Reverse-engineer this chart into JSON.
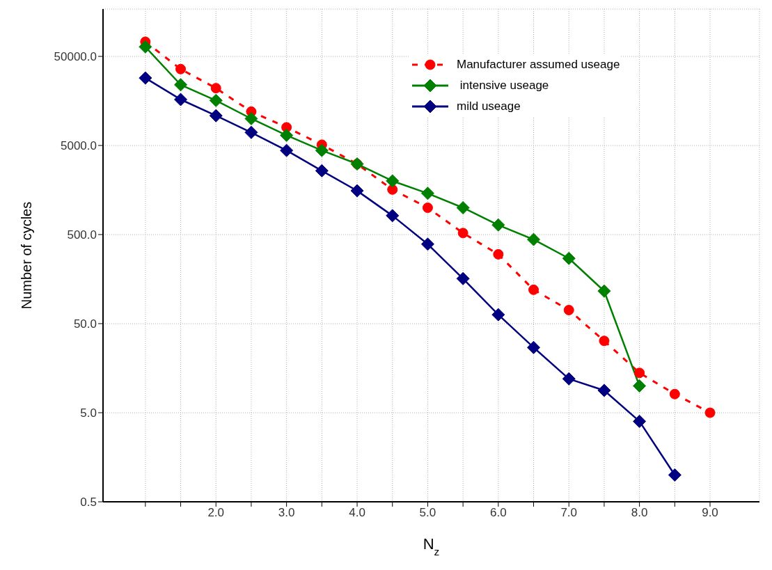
{
  "chart_data": {
    "type": "line",
    "xlabel": "N$_{z}$",
    "ylabel": "Number of cycles",
    "log": "y",
    "grid": true,
    "legend": "top right",
    "xlim": [
      0.4,
      9.7
    ],
    "xticks": [
      {
        "value": 1,
        "label": null
      },
      {
        "value": 1.5,
        "label": null
      },
      {
        "value": 2,
        "label": "2.0"
      },
      {
        "value": 2.5,
        "label": null
      },
      {
        "value": 3,
        "label": "3.0"
      },
      {
        "value": 3.5,
        "label": null
      },
      {
        "value": 4,
        "label": "4.0"
      },
      {
        "value": 4.5,
        "label": null
      },
      {
        "value": 5,
        "label": "5.0"
      },
      {
        "value": 5.5,
        "label": null
      },
      {
        "value": 6,
        "label": "6.0"
      },
      {
        "value": 6.5,
        "label": null
      },
      {
        "value": 7,
        "label": "7.0"
      },
      {
        "value": 7.5,
        "label": null
      },
      {
        "value": 8,
        "label": "8.0"
      },
      {
        "value": 8.5,
        "label": null
      },
      {
        "value": 9,
        "label": "9.0"
      }
    ],
    "ylim": [
      0.5,
      170000
    ],
    "yticks": [
      {
        "value": 0.5,
        "label": "0.5"
      },
      {
        "value": 5,
        "label": "5.0"
      },
      {
        "value": 50,
        "label": "50.0"
      },
      {
        "value": 500,
        "label": "500.0"
      },
      {
        "value": 5000,
        "label": "5000.0"
      },
      {
        "value": 50000,
        "label": "50000.0"
      }
    ],
    "series": [
      {
        "name": "Manufacturer assumed useage",
        "color": "#ff0000",
        "marker": "circle",
        "line_style": "dashed",
        "x": [
          1,
          1.5,
          2,
          2.5,
          3,
          3.5,
          4,
          4.5,
          5,
          5.5,
          6,
          6.5,
          7,
          7.5,
          8,
          8.5,
          9
        ],
        "values": [
          73000,
          36000,
          22000,
          12000,
          8000,
          5100,
          3100,
          1600,
          1000,
          520,
          300,
          120,
          71,
          32,
          14,
          8.1,
          5
        ]
      },
      {
        "name": " intensive useage",
        "color": "#008000",
        "marker": "diamond",
        "line_style": "solid",
        "x": [
          1,
          1.5,
          2,
          2.5,
          3,
          3.5,
          4,
          4.5,
          5,
          5.5,
          6,
          6.5,
          7,
          7.5,
          8
        ],
        "values": [
          64000,
          24000,
          16000,
          10000,
          6500,
          4400,
          3100,
          2000,
          1450,
          1000,
          640,
          440,
          270,
          116,
          10
        ]
      },
      {
        "name": "mild useage",
        "color": "#000080",
        "marker": "diamond",
        "line_style": "solid",
        "x": [
          1,
          1.5,
          2,
          2.5,
          3,
          3.5,
          4,
          4.5,
          5,
          5.5,
          6,
          6.5,
          7,
          7.5,
          8,
          8.5
        ],
        "values": [
          28600,
          16400,
          10800,
          7000,
          4400,
          2600,
          1550,
          815,
          390,
          160,
          63,
          27,
          12,
          8.9,
          4,
          1
        ]
      }
    ]
  }
}
